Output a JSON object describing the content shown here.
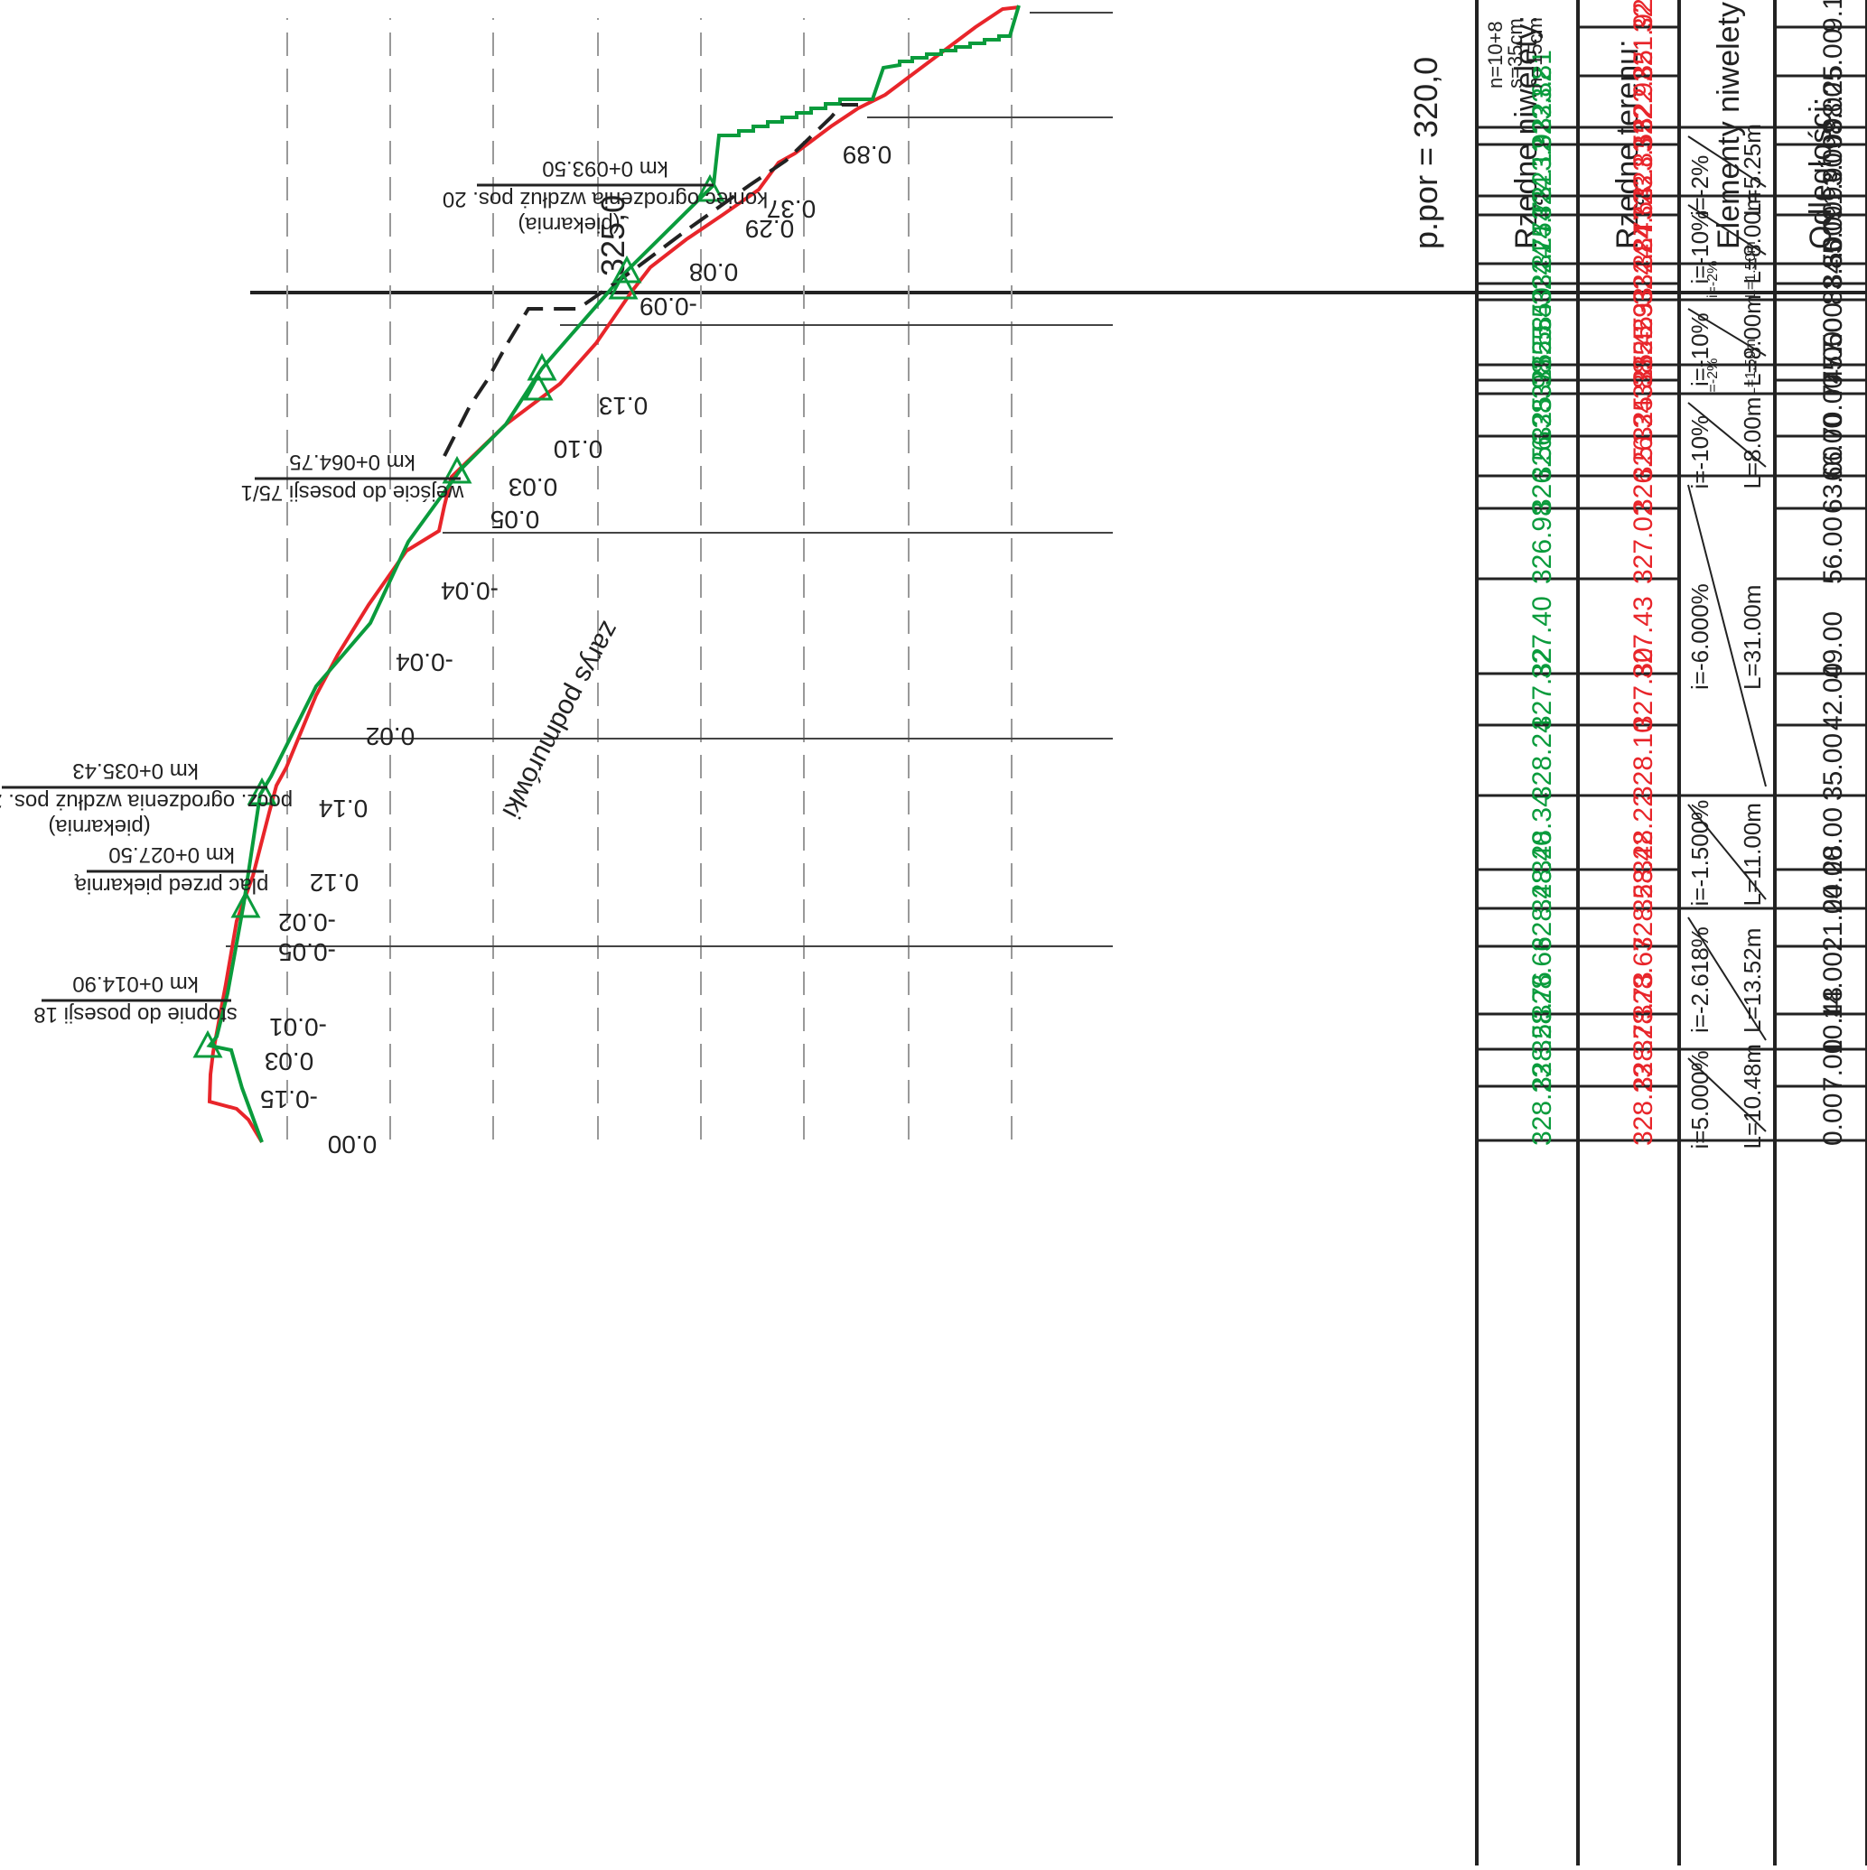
{
  "header": {
    "datum": "p.por = 320,0",
    "elev_tick_label": "325,0"
  },
  "row_labels": {
    "niweleta": "Rzędne niwelety:",
    "teren": "Rzędne terenu:",
    "elementy": "Elementy niwelety:",
    "odleglosci": "Odległości:"
  },
  "colors": {
    "grade_line": "#0a9b3c",
    "terrain_line": "#e8252a",
    "outline": "#222222",
    "grid_dash": "#999999"
  },
  "stations": [
    {
      "dist": "0.00",
      "niw": "328.23",
      "ter": "328.23",
      "diff": "0.00"
    },
    {
      "dist": "7.00",
      "niw": "328.58",
      "ter": "328.73",
      "diff": "-0.15"
    },
    {
      "dist": "10.48",
      "niw": "328.76",
      "ter": "328.73",
      "diff": "0.03"
    },
    {
      "dist": "14.00",
      "niw": "328.66",
      "ter": "328.67",
      "diff": "-0.01"
    },
    {
      "dist": "21.00",
      "niw": "328.48",
      "ter": "328.53",
      "diff": "-0.05"
    },
    {
      "dist": "24.00",
      "niw": "328.40",
      "ter": "328.42",
      "diff": "-0.02"
    },
    {
      "dist": "28.00",
      "niw": "328.34",
      "ter": "328.22",
      "diff": "0.12"
    },
    {
      "dist": "35.00",
      "niw": "328.24",
      "ter": "328.10",
      "diff": "0.14"
    },
    {
      "dist": "42.00",
      "niw": "327.82",
      "ter": "327.80",
      "diff": "0.02"
    },
    {
      "dist": "49.00",
      "niw": "327.40",
      "ter": "327.43",
      "diff": "-0.04"
    },
    {
      "dist": "56.00",
      "niw": "326.98",
      "ter": "327.02",
      "diff": "-0.04"
    },
    {
      "dist": "63.00",
      "niw": "326.56",
      "ter": "326.51",
      "diff": "0.05"
    },
    {
      "dist": "66.00",
      "niw": "326.38",
      "ter": "326.34",
      "diff": "0.03"
    },
    {
      "dist": "70.00",
      "niw": "325.98",
      "ter": "325.88",
      "diff": "0.10"
    },
    {
      "dist": "74.00",
      "niw": "325.58",
      "ter": "325.45",
      "diff": "0.13"
    },
    {
      "dist": "75.50",
      "niw": "325.55",
      "ter": "325.29",
      "diff": ""
    },
    {
      "dist": "77.00",
      "niw": "325.40",
      "ter": "325.33",
      "diff": ""
    },
    {
      "dist": "83.50",
      "niw": "324.75",
      "ter": "324.84",
      "diff": "-0.09"
    },
    {
      "dist": "84.00",
      "niw": "324.74",
      "ter": "324.77",
      "diff": ""
    },
    {
      "dist": "85.00",
      "niw": "324.72",
      "ter": "324.64",
      "diff": "0.08"
    },
    {
      "dist": "91.00",
      "niw": "324.12",
      "ter": "323.83",
      "diff": "0.29"
    },
    {
      "dist": "93.00",
      "niw": "323.92",
      "ter": "323.55",
      "diff": "0.37"
    },
    {
      "dist": "98.00",
      "niw": "323.82",
      "ter": "322.92",
      "diff": "0.89"
    },
    {
      "dist": "98.25",
      "niw": "323.81",
      "ter": "322.85",
      "diff": ""
    },
    {
      "dist": "5.00",
      "niw": "",
      "ter": "321.92",
      "diff": ""
    },
    {
      "dist": "9.13",
      "niw": "",
      "ter": "321.45",
      "diff": ""
    }
  ],
  "elements": [
    {
      "i": "i=5.000%",
      "L": "L=10.48m"
    },
    {
      "i": "i=-2.618%",
      "L": "L=13.52m"
    },
    {
      "i": "i=-1.500%",
      "L": "L=11.00m"
    },
    {
      "i": "i=-6.000%",
      "L": "L=31.00m"
    },
    {
      "i": "i=-10%",
      "L": "L=8.00m"
    },
    {
      "i": "i=-2%",
      "L": "L=1.50m"
    },
    {
      "i": "i=-10%",
      "L": "L=8.00m"
    },
    {
      "i": "i=-2%",
      "L": "L=1.50m"
    },
    {
      "i": "i=-10%",
      "L": "L=8.00m"
    },
    {
      "i": "i=-2%",
      "L": "L=5.25m"
    }
  ],
  "stairs": {
    "n": "n=10+8",
    "s": "s=35cm",
    "h": "h=15cm"
  },
  "annotations": [
    {
      "km": "km 0+014.90",
      "text": "stopnie do posesji 18",
      "text2": ""
    },
    {
      "km": "km 0+027.50",
      "text": "plac przed piekarnią",
      "text2": ""
    },
    {
      "km": "km 0+035.43",
      "text": "pocz. ogrodzenia wzdłuż pos. 20",
      "text2": "(piekarnia)"
    },
    {
      "km": "km 0+064.75",
      "text": "wejście do posesji 75/1",
      "text2": ""
    },
    {
      "km": "km 0+093.50",
      "text": "koniec ogrodzenia wzdłuż pos. 20",
      "text2": "(piekarnia)"
    }
  ],
  "zarys": "zarys podmurówki"
}
